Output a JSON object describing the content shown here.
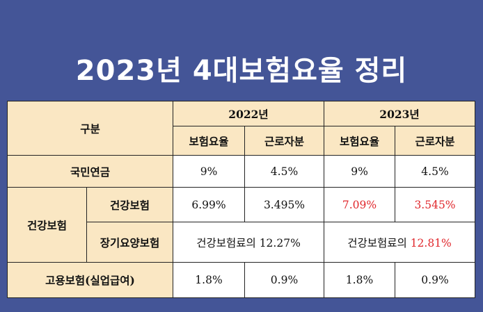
{
  "title": "2023년 4대보험요율 정리",
  "header": {
    "category": "구분",
    "year_2022": "2022년",
    "year_2023": "2023년",
    "insurance_rate": "보험요율",
    "employee_share": "근로자분"
  },
  "rows": {
    "pension": {
      "label": "국민연금",
      "rate_2022": "9%",
      "share_2022": "4.5%",
      "rate_2023": "9%",
      "share_2023": "4.5%"
    },
    "health_group_label": "건강보험",
    "health": {
      "label": "건강보험",
      "rate_2022": "6.99%",
      "share_2022": "3.495%",
      "rate_2023": "7.09%",
      "share_2023": "3.545%"
    },
    "longterm": {
      "label": "장기요양보험",
      "text_2022": "건강보험료의 12.27%",
      "prefix_2023": "건강보험료의 ",
      "value_2023": "12.81%"
    },
    "employment": {
      "label": "고용보험(실업급여)",
      "rate_2022": "1.8%",
      "share_2022": "0.9%",
      "rate_2023": "1.8%",
      "share_2023": "0.9%"
    }
  },
  "colors": {
    "background": "#445597",
    "header_fill": "#fae7c3",
    "highlight": "#e0262b"
  }
}
